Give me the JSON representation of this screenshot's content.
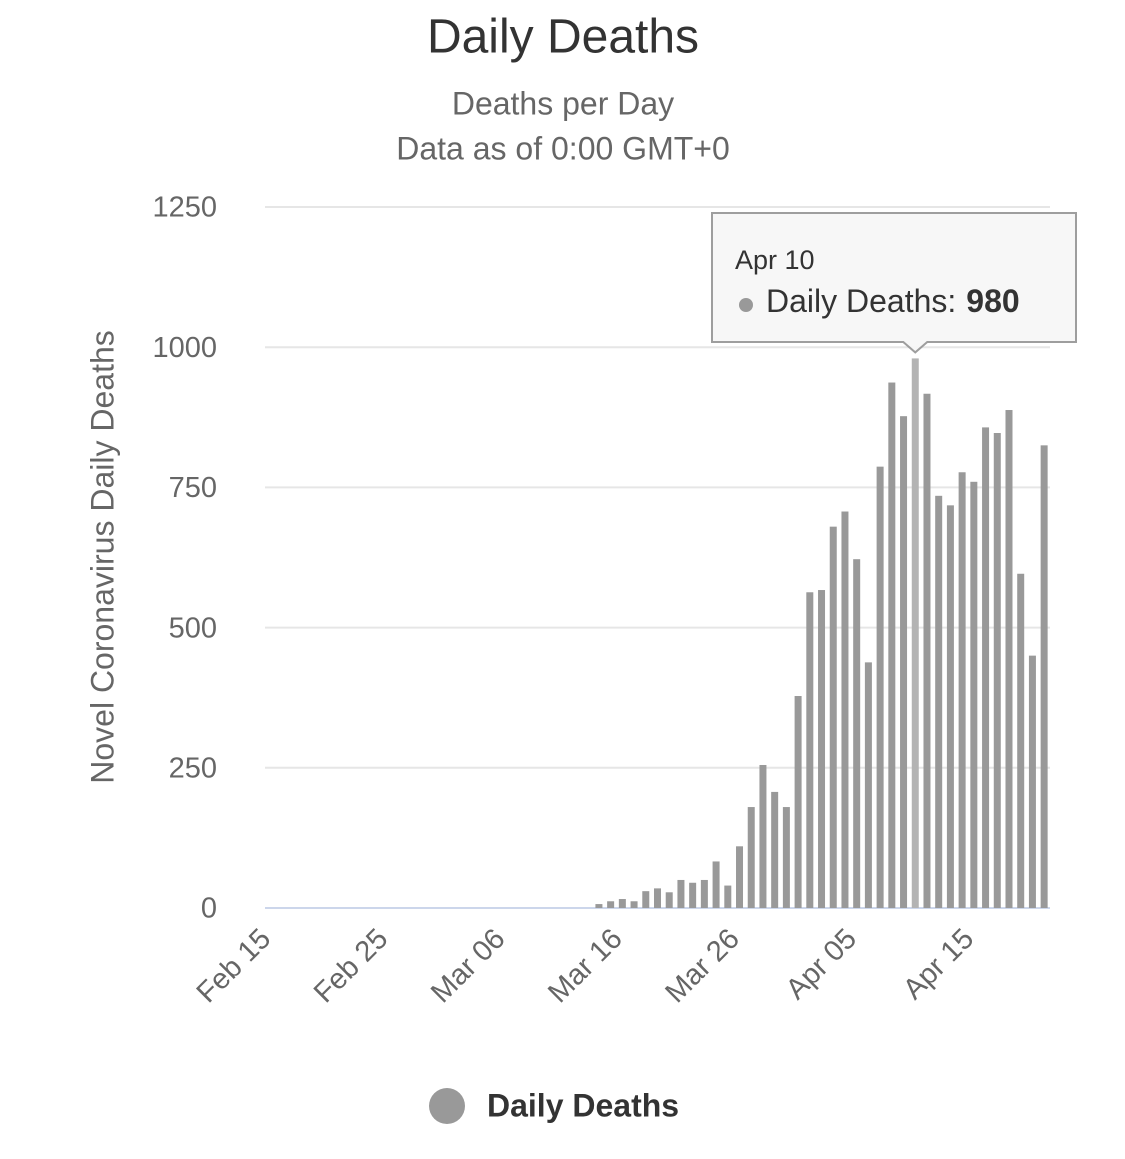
{
  "chart_data": {
    "type": "bar",
    "title": "Daily Deaths",
    "subtitle": [
      "Deaths per Day",
      "Data as of 0:00 GMT+0"
    ],
    "y_label": "Novel Coronavirus Daily Deaths",
    "categories": [
      "Feb 15",
      null,
      null,
      null,
      null,
      null,
      null,
      null,
      null,
      null,
      "Feb 25",
      null,
      null,
      null,
      null,
      null,
      null,
      null,
      null,
      null,
      "Mar 06",
      null,
      null,
      null,
      null,
      null,
      null,
      null,
      null,
      null,
      "Mar 16",
      null,
      null,
      null,
      null,
      null,
      null,
      null,
      null,
      null,
      "Mar 26",
      null,
      null,
      null,
      null,
      null,
      null,
      null,
      null,
      null,
      "Apr 05",
      null,
      null,
      null,
      null,
      null,
      null,
      null,
      null,
      null,
      "Apr 15",
      null,
      null,
      null,
      null,
      null,
      null
    ],
    "series": [
      {
        "name": "Daily Deaths",
        "color": "#999999",
        "values": [
          0,
          0,
          0,
          0,
          0,
          0,
          0,
          0,
          0,
          0,
          0,
          0,
          0,
          0,
          0,
          0,
          0,
          0,
          0,
          0,
          0,
          0,
          0,
          0,
          0,
          0,
          0,
          0,
          7,
          12,
          16,
          12,
          30,
          35,
          28,
          50,
          45,
          50,
          83,
          40,
          110,
          180,
          255,
          207,
          180,
          378,
          563,
          567,
          680,
          707,
          622,
          438,
          787,
          937,
          877,
          980,
          917,
          735,
          718,
          777,
          760,
          857,
          847,
          888,
          596,
          450,
          825
        ]
      }
    ],
    "ylim": [
      0,
      1250
    ],
    "yticks": [
      0,
      250,
      500,
      750,
      1000,
      1250
    ],
    "grid": true,
    "tooltip": {
      "date": "Apr 10",
      "label": "Daily Deaths:",
      "value": 980
    }
  }
}
